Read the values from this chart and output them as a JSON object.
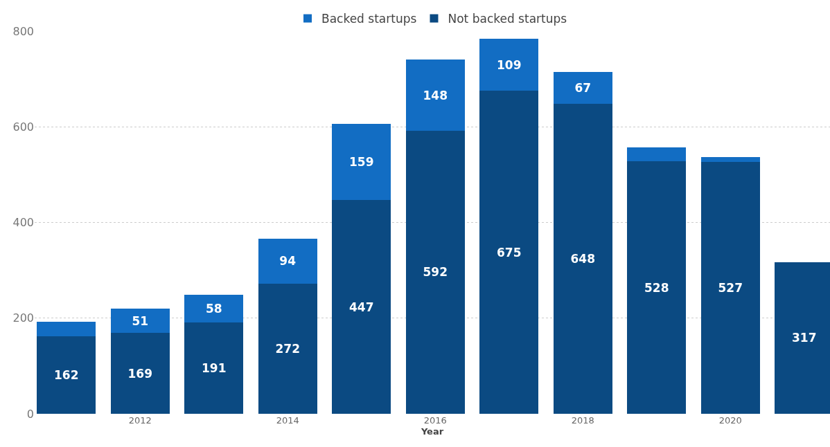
{
  "chart_data": {
    "type": "bar",
    "stacked": true,
    "xlabel": "Year",
    "x": [
      2011,
      2012,
      2013,
      2014,
      2015,
      2016,
      2017,
      2018,
      2019,
      2020,
      2021
    ],
    "series": [
      {
        "name": "Not backed startups",
        "color": "#0b4a82",
        "values": [
          162,
          169,
          191,
          272,
          447,
          592,
          675,
          648,
          528,
          527,
          317
        ],
        "value_labels": [
          "162",
          "169",
          "191",
          "272",
          "447",
          "592",
          "675",
          "648",
          "528",
          "527",
          "317"
        ]
      },
      {
        "name": "Backed startups",
        "color": "#126dc3",
        "values": [
          31,
          51,
          58,
          94,
          159,
          148,
          109,
          67,
          29,
          10,
          0
        ],
        "value_labels": [
          null,
          "51",
          "58",
          "94",
          "159",
          "148",
          "109",
          "67",
          null,
          null,
          null
        ]
      }
    ],
    "xlim": [
      2010.57,
      2021.35
    ],
    "xticks": [
      2012,
      2014,
      2016,
      2018,
      2020
    ],
    "ylim": [
      0,
      800
    ],
    "yticks": [
      0,
      200,
      400,
      600,
      800
    ],
    "grid": "y",
    "legend": "top"
  }
}
